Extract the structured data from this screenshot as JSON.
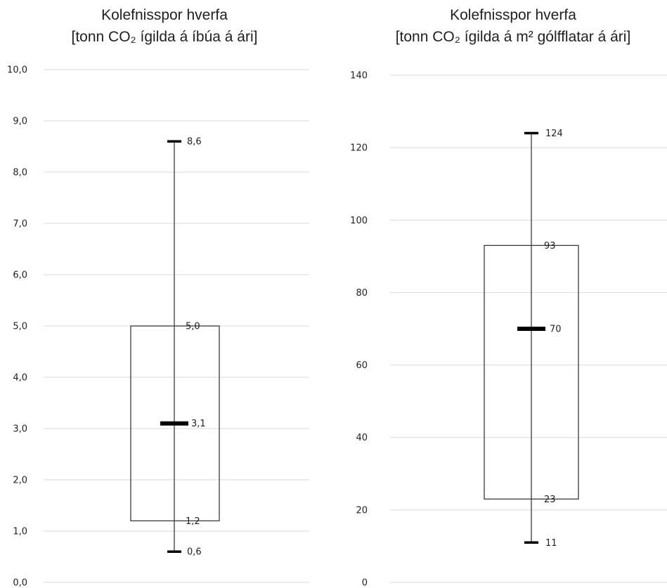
{
  "chart_data": [
    {
      "type": "boxplot",
      "title_line1": "Kolefnisspor hverfa",
      "title_line2": "[tonn CO₂ ígilda á íbúa á ári]",
      "ylim": [
        0,
        10
      ],
      "ytick_labels": [
        "0,0",
        "1,0",
        "2,0",
        "3,0",
        "4,0",
        "5,0",
        "6,0",
        "7,0",
        "8,0",
        "9,0",
        "10,0"
      ],
      "grid": true,
      "box": {
        "min": 0.6,
        "q1": 1.2,
        "median": 3.1,
        "q3": 5.0,
        "max": 8.6,
        "labels": {
          "min": "0,6",
          "q1": "1,2",
          "median": "3,1",
          "q3": "5,0",
          "max": "8,6"
        }
      }
    },
    {
      "type": "boxplot",
      "title_line1": "Kolefnisspor hverfa",
      "title_line2": "[tonn CO₂ ígilda á m² gólfflatar á ári]",
      "ylim": [
        0,
        140
      ],
      "ytick_labels": [
        "0",
        "20",
        "40",
        "60",
        "80",
        "100",
        "120",
        "140"
      ],
      "grid": true,
      "box": {
        "min": 11,
        "q1": 23,
        "median": 70,
        "q3": 93,
        "max": 124,
        "labels": {
          "min": "11",
          "q1": "23",
          "median": "70",
          "q3": "93",
          "max": "124"
        }
      }
    }
  ],
  "colors": {
    "grid": "#d9d9d9",
    "line": "#3a3a3a",
    "text": "#222222"
  }
}
